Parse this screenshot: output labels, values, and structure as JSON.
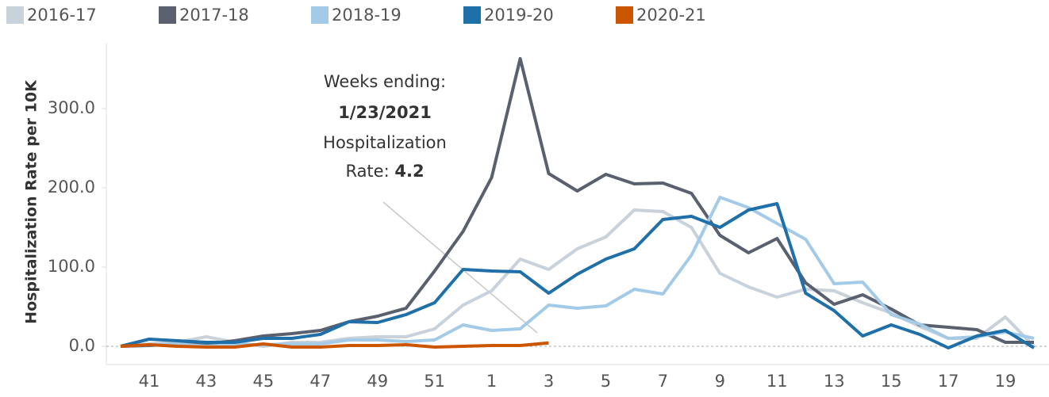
{
  "chart_data": {
    "type": "line",
    "y_label": "Hospitalization Rate per 10K",
    "categories": [
      null,
      "41",
      null,
      "43",
      null,
      "45",
      null,
      "47",
      null,
      "49",
      null,
      "51",
      null,
      "1",
      null,
      "3",
      null,
      "5",
      null,
      "7",
      null,
      "9",
      null,
      "11",
      null,
      "13",
      null,
      "15",
      null,
      "17",
      null,
      "19",
      null
    ],
    "series": [
      {
        "name": "2016-17",
        "color": "#c9d1da",
        "values": [
          0,
          3,
          5,
          12,
          5,
          0,
          5,
          5,
          10,
          12,
          12,
          22,
          52,
          70,
          110,
          97,
          123,
          138,
          172,
          170,
          150,
          92,
          75,
          62,
          72,
          70,
          55,
          42,
          25,
          10,
          10,
          37,
          0
        ]
      },
      {
        "name": "2017-18",
        "color": "#5a606e",
        "values": [
          0,
          1,
          3,
          3,
          7,
          13,
          16,
          20,
          31,
          38,
          48,
          95,
          145,
          213,
          363,
          218,
          196,
          217,
          205,
          206,
          193,
          140,
          118,
          136,
          80,
          53,
          65,
          47,
          27,
          24,
          21,
          5,
          5
        ]
      },
      {
        "name": "2018-19",
        "color": "#a3cbe8",
        "values": [
          0,
          2,
          3,
          0,
          2,
          2,
          3,
          3,
          8,
          8,
          6,
          8,
          27,
          20,
          22,
          52,
          48,
          51,
          72,
          66,
          115,
          188,
          175,
          155,
          135,
          79,
          81,
          40,
          28,
          10,
          12,
          18,
          10
        ]
      },
      {
        "name": "2019-20",
        "color": "#1f6fa8",
        "values": [
          0,
          9,
          7,
          5,
          5,
          10,
          10,
          15,
          31,
          30,
          40,
          55,
          97,
          95,
          94,
          67,
          91,
          110,
          123,
          160,
          164,
          150,
          172,
          180,
          67,
          45,
          13,
          27,
          15,
          -2,
          13,
          20,
          -2
        ]
      },
      {
        "name": "2020-21",
        "color": "#cc5500",
        "values": [
          0,
          2,
          0,
          -1,
          -1,
          3,
          -1,
          -1,
          1,
          1,
          2,
          -1,
          0,
          1,
          1,
          4.2,
          null,
          null,
          null,
          null,
          null,
          null,
          null,
          null,
          null,
          null,
          null,
          null,
          null,
          null,
          null,
          null,
          null
        ]
      }
    ],
    "ylim": [
      -23,
      382
    ],
    "yticks": [
      {
        "value": 0,
        "label": "0.0"
      },
      {
        "value": 100,
        "label": "100.0"
      },
      {
        "value": 200,
        "label": "200.0"
      },
      {
        "value": 300,
        "label": "300.0"
      }
    ],
    "annotation": {
      "line1": "Weeks ending:",
      "date": "1/23/2021",
      "line3": "Hospitalization",
      "rate_label": "Rate:",
      "rate": "4.2"
    }
  }
}
